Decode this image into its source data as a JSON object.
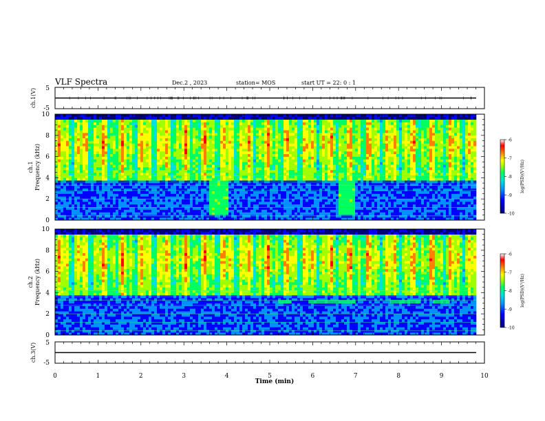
{
  "chart_data": {
    "type": "heatmap",
    "title": "VLF Spectra",
    "date": "Dec.2 , 2023",
    "station": "station= MOS",
    "start_ut": "start  UT =   22: 0  : 1",
    "xlabel": "Time  (min)",
    "xlim": [
      0,
      10
    ],
    "x_ticks": [
      "0",
      "1",
      "2",
      "3",
      "4",
      "5",
      "6",
      "7",
      "8",
      "9",
      "10"
    ],
    "panels": [
      {
        "id": "ch1-waveform",
        "type": "line",
        "ylabel": "ch.1(V)",
        "ylim": [
          -5,
          5
        ],
        "y_ticks": [
          "5",
          "-5"
        ],
        "level": 0
      },
      {
        "id": "ch1-spectrogram",
        "type": "heatmap",
        "ylabel": "ch.1\nFrequency (kHz)",
        "ylim": [
          0,
          10
        ],
        "y_ticks": [
          "0",
          "2",
          "4",
          "6",
          "8",
          "10"
        ],
        "broadband_bursts_min": [
          [
            3.55,
            4.0
          ],
          [
            6.6,
            6.95
          ]
        ],
        "colorbar": {
          "label": "log(PSD)(V²/Hz)",
          "range": [
            -10,
            -6
          ],
          "ticks": [
            "-6",
            "-7",
            "-8",
            "-9",
            "-10"
          ]
        }
      },
      {
        "id": "ch2-spectrogram",
        "type": "heatmap",
        "ylabel": "ch.2\nFrequency (kHz)",
        "ylim": [
          0,
          10
        ],
        "y_ticks": [
          "0",
          "2",
          "4",
          "6",
          "8",
          "10"
        ],
        "band_segments_min_khz": [
          [
            5.2,
            5.5,
            3.1
          ],
          [
            5.9,
            7.0,
            3.1
          ],
          [
            7.8,
            8.5,
            3.1
          ],
          [
            8.8,
            9.2,
            3.1
          ]
        ],
        "colorbar": {
          "label": "log(PSD)(V²/Hz)",
          "range": [
            -10,
            -6
          ],
          "ticks": [
            "-6",
            "-7",
            "-8",
            "-9",
            "-10"
          ]
        }
      },
      {
        "id": "ch3-waveform",
        "type": "line",
        "ylabel": "ch.3(V)",
        "ylim": [
          -5,
          5
        ],
        "y_ticks": [
          "5",
          "-5"
        ],
        "level": 0
      }
    ],
    "colors": {
      "colormap": [
        "#00007a",
        "#0000ff",
        "#0090ff",
        "#00e0e0",
        "#00ff60",
        "#a0ff00",
        "#ffff00",
        "#ff8000",
        "#ff0000",
        "#ffffff"
      ],
      "axis": "#000000"
    }
  }
}
